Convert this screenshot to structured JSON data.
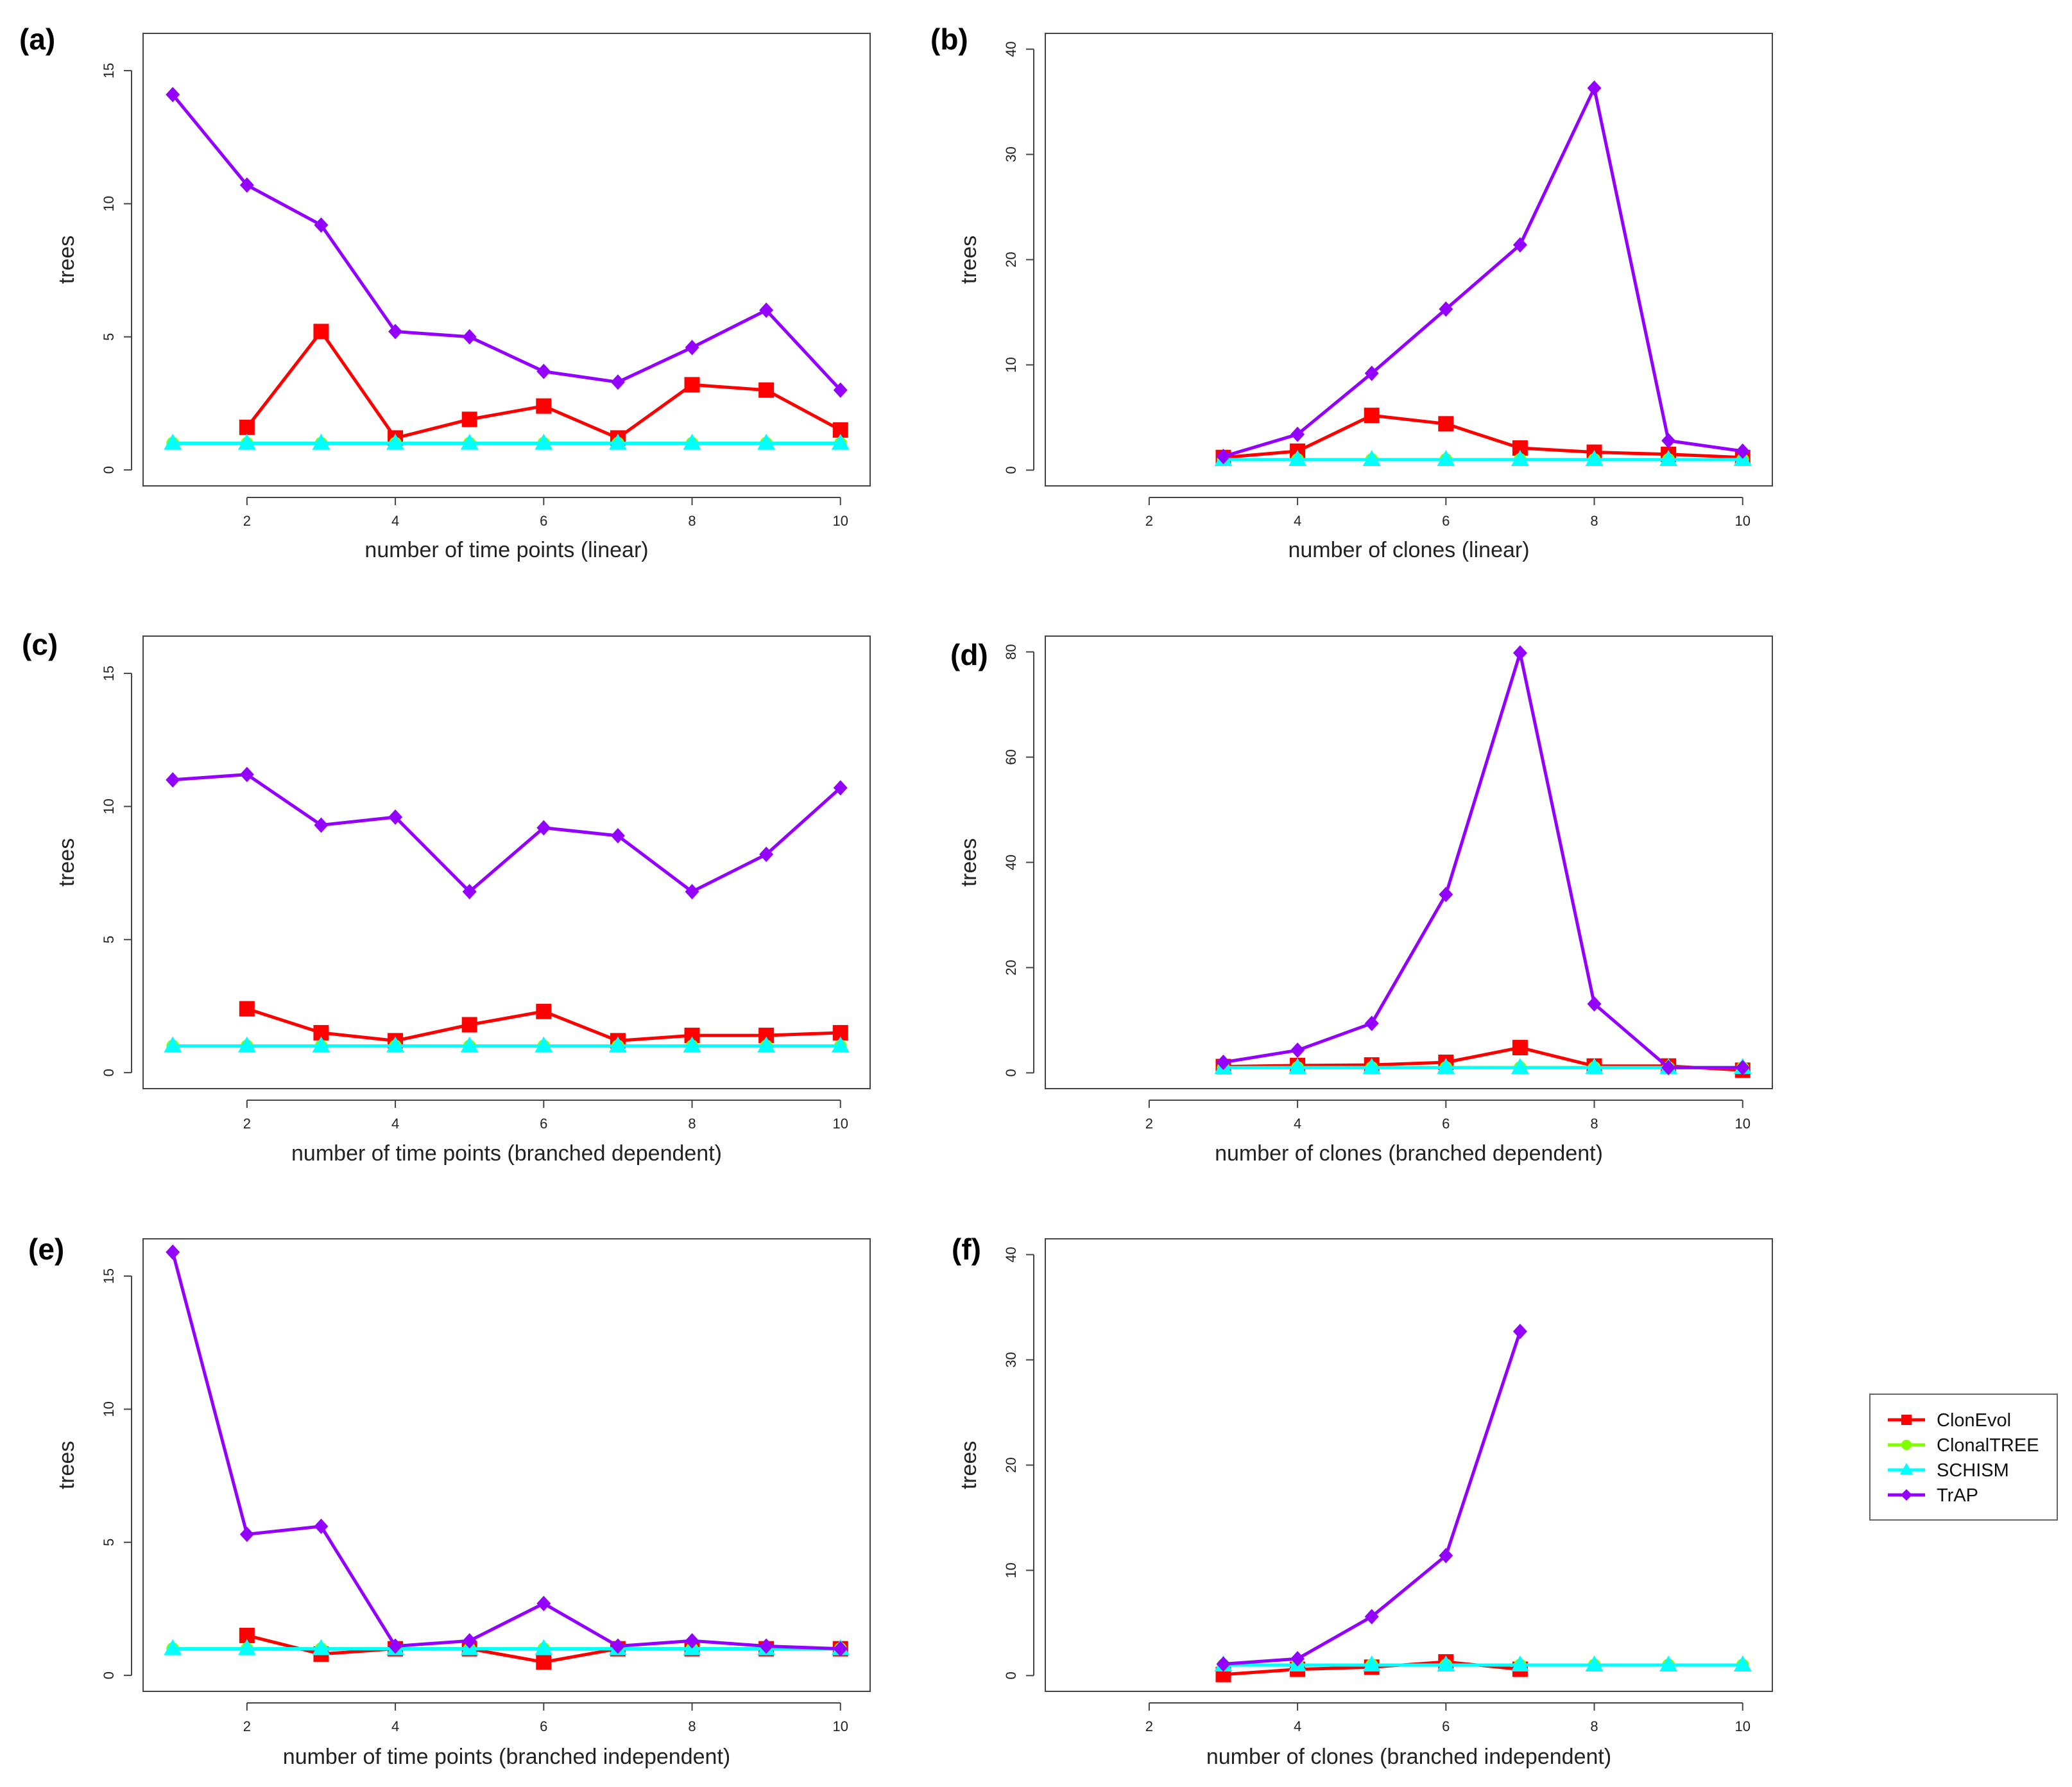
{
  "legend": {
    "entries": [
      {
        "name": "ClonEvol",
        "color": "#ff0000",
        "marker": "square"
      },
      {
        "name": "ClonalTREE",
        "color": "#7fff00",
        "marker": "circle"
      },
      {
        "name": "SCHISM",
        "color": "#00ffff",
        "marker": "triangle"
      },
      {
        "name": "TrAP",
        "color": "#9400ff",
        "marker": "diamond"
      }
    ]
  },
  "chart_data": [
    {
      "panel": "(a)",
      "type": "line",
      "xlabel": "number of time points (linear)",
      "ylabel": "trees",
      "xlim": [
        0.6,
        10.4
      ],
      "ylim": [
        -0.6,
        16.4
      ],
      "xticks": [
        2,
        4,
        6,
        8,
        10
      ],
      "yticks": [
        0,
        5,
        10,
        15
      ],
      "series": [
        {
          "name": "ClonEvol",
          "x": [
            2,
            3,
            4,
            5,
            6,
            7,
            8,
            9,
            10
          ],
          "y": [
            1.6,
            5.2,
            1.2,
            1.9,
            2.4,
            1.2,
            3.2,
            3.0,
            1.5
          ]
        },
        {
          "name": "ClonalTREE",
          "x": [
            1,
            2,
            3,
            4,
            5,
            6,
            7,
            8,
            9,
            10
          ],
          "y": [
            1,
            1,
            1,
            1,
            1,
            1,
            1,
            1,
            1,
            1
          ]
        },
        {
          "name": "SCHISM",
          "x": [
            1,
            2,
            3,
            4,
            5,
            6,
            7,
            8,
            9,
            10
          ],
          "y": [
            1,
            1,
            1,
            1,
            1,
            1,
            1,
            1,
            1,
            1
          ]
        },
        {
          "name": "TrAP",
          "x": [
            1,
            2,
            3,
            4,
            5,
            6,
            7,
            8,
            9,
            10
          ],
          "y": [
            14.1,
            10.7,
            9.2,
            5.2,
            5.0,
            3.7,
            3.3,
            4.6,
            6.0,
            3.0
          ]
        }
      ]
    },
    {
      "panel": "(b)",
      "type": "line",
      "xlabel": "number of clones (linear)",
      "ylabel": "trees",
      "xlim": [
        0.6,
        10.4
      ],
      "ylim": [
        -1.5,
        41.5
      ],
      "xticks": [
        2,
        4,
        6,
        8,
        10
      ],
      "yticks": [
        0,
        10,
        20,
        30,
        40
      ],
      "series": [
        {
          "name": "ClonEvol",
          "x": [
            3,
            4,
            5,
            6,
            7,
            8,
            9,
            10
          ],
          "y": [
            1.2,
            1.8,
            5.2,
            4.4,
            2.1,
            1.7,
            1.5,
            1.2
          ]
        },
        {
          "name": "ClonalTREE",
          "x": [
            3,
            4,
            5,
            6,
            7,
            8,
            9,
            10
          ],
          "y": [
            1,
            1,
            1,
            1,
            1,
            1,
            1,
            1
          ]
        },
        {
          "name": "SCHISM",
          "x": [
            3,
            4,
            5,
            6,
            7,
            8,
            9,
            10
          ],
          "y": [
            1,
            1,
            1,
            1,
            1,
            1,
            1,
            1
          ]
        },
        {
          "name": "TrAP",
          "x": [
            3,
            4,
            5,
            6,
            7,
            8,
            9,
            10
          ],
          "y": [
            1.3,
            3.4,
            9.2,
            15.3,
            21.4,
            36.3,
            2.8,
            1.8
          ]
        }
      ]
    },
    {
      "panel": "(c)",
      "type": "line",
      "xlabel": "number of time points (branched dependent)",
      "ylabel": "trees",
      "xlim": [
        0.6,
        10.4
      ],
      "ylim": [
        -0.6,
        16.4
      ],
      "xticks": [
        2,
        4,
        6,
        8,
        10
      ],
      "yticks": [
        0,
        5,
        10,
        15
      ],
      "series": [
        {
          "name": "ClonEvol",
          "x": [
            2,
            3,
            4,
            5,
            6,
            7,
            8,
            9,
            10
          ],
          "y": [
            2.4,
            1.5,
            1.2,
            1.8,
            2.3,
            1.2,
            1.4,
            1.4,
            1.5
          ]
        },
        {
          "name": "ClonalTREE",
          "x": [
            1,
            2,
            3,
            4,
            5,
            6,
            7,
            8,
            9,
            10
          ],
          "y": [
            1,
            1,
            1,
            1,
            1,
            1,
            1,
            1,
            1,
            1
          ]
        },
        {
          "name": "SCHISM",
          "x": [
            1,
            2,
            3,
            4,
            5,
            6,
            7,
            8,
            9,
            10
          ],
          "y": [
            1,
            1,
            1,
            1,
            1,
            1,
            1,
            1,
            1,
            1
          ]
        },
        {
          "name": "TrAP",
          "x": [
            1,
            2,
            3,
            4,
            5,
            6,
            7,
            8,
            9,
            10
          ],
          "y": [
            11.0,
            11.2,
            9.3,
            9.6,
            6.8,
            9.2,
            8.9,
            6.8,
            8.2,
            10.7
          ]
        }
      ]
    },
    {
      "panel": "(d)",
      "type": "line",
      "xlabel": "number of clones (branched dependent)",
      "ylabel": "trees",
      "xlim": [
        0.6,
        10.4
      ],
      "ylim": [
        -3,
        83
      ],
      "xticks": [
        2,
        4,
        6,
        8,
        10
      ],
      "yticks": [
        0,
        20,
        40,
        60,
        80
      ],
      "series": [
        {
          "name": "ClonEvol",
          "x": [
            3,
            4,
            5,
            6,
            7,
            8,
            9,
            10
          ],
          "y": [
            1.2,
            1.4,
            1.5,
            2.0,
            4.8,
            1.3,
            1.3,
            0.5
          ]
        },
        {
          "name": "ClonalTREE",
          "x": [
            3,
            4,
            5,
            6,
            7,
            8,
            9,
            10
          ],
          "y": [
            1,
            1,
            1,
            1,
            1,
            1,
            1,
            1
          ]
        },
        {
          "name": "SCHISM",
          "x": [
            3,
            4,
            5,
            6,
            7,
            8,
            9,
            10
          ],
          "y": [
            1,
            1,
            1,
            1,
            1,
            1,
            1,
            1
          ]
        },
        {
          "name": "TrAP",
          "x": [
            3,
            4,
            5,
            6,
            7,
            8,
            9,
            10
          ],
          "y": [
            2.0,
            4.3,
            9.4,
            33.9,
            79.8,
            13.1,
            1.0,
            1.0
          ]
        }
      ]
    },
    {
      "panel": "(e)",
      "type": "line",
      "xlabel": "number of time points (branched independent)",
      "ylabel": "trees",
      "xlim": [
        0.6,
        10.4
      ],
      "ylim": [
        -0.6,
        16.4
      ],
      "xticks": [
        2,
        4,
        6,
        8,
        10
      ],
      "yticks": [
        0,
        5,
        10,
        15
      ],
      "series": [
        {
          "name": "ClonEvol",
          "x": [
            2,
            3,
            4,
            5,
            6,
            7,
            8,
            9,
            10
          ],
          "y": [
            1.5,
            0.8,
            1.0,
            1.0,
            0.5,
            1.0,
            1.0,
            1.0,
            1.0
          ]
        },
        {
          "name": "ClonalTREE",
          "x": [
            1,
            2,
            3,
            4,
            5,
            6,
            7,
            8,
            9,
            10
          ],
          "y": [
            1,
            1,
            1,
            1,
            1,
            1,
            1,
            1,
            1,
            1
          ]
        },
        {
          "name": "SCHISM",
          "x": [
            1,
            2,
            3,
            4,
            5,
            6,
            7,
            8,
            9,
            10
          ],
          "y": [
            1,
            1,
            1,
            1,
            1,
            1,
            1,
            1,
            1,
            1
          ]
        },
        {
          "name": "TrAP",
          "x": [
            1,
            2,
            3,
            4,
            5,
            6,
            7,
            8,
            9,
            10
          ],
          "y": [
            15.9,
            5.3,
            5.6,
            1.1,
            1.3,
            2.7,
            1.1,
            1.3,
            1.1,
            1.0
          ]
        }
      ]
    },
    {
      "panel": "(f)",
      "type": "line",
      "xlabel": "number of clones (branched independent)",
      "ylabel": "trees",
      "xlim": [
        0.6,
        10.4
      ],
      "ylim": [
        -1.5,
        41.5
      ],
      "xticks": [
        2,
        4,
        6,
        8,
        10
      ],
      "yticks": [
        0,
        10,
        20,
        30,
        40
      ],
      "series": [
        {
          "name": "ClonEvol",
          "x": [
            3,
            4,
            5,
            6,
            7
          ],
          "y": [
            0.1,
            0.6,
            0.8,
            1.3,
            0.6
          ]
        },
        {
          "name": "ClonalTREE",
          "x": [
            3,
            4,
            5,
            6,
            7,
            8,
            9,
            10
          ],
          "y": [
            1,
            1,
            1,
            1,
            1,
            1,
            1,
            1
          ]
        },
        {
          "name": "SCHISM",
          "x": [
            3,
            4,
            5,
            6,
            7,
            8,
            9,
            10
          ],
          "y": [
            1,
            1,
            1,
            1,
            1,
            1,
            1,
            1
          ]
        },
        {
          "name": "TrAP",
          "x": [
            3,
            4,
            5,
            6,
            7
          ],
          "y": [
            1.1,
            1.6,
            5.6,
            11.4,
            32.7
          ]
        }
      ]
    }
  ]
}
